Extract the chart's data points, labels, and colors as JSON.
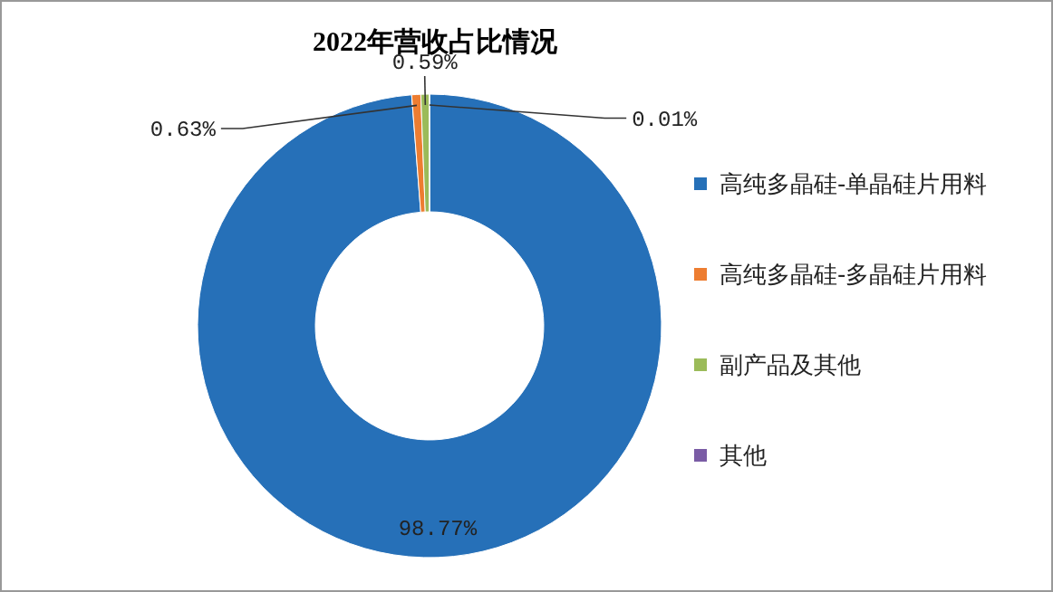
{
  "chart_data": {
    "type": "donut",
    "title": "2022年营收占比情况",
    "categories": [
      "高纯多晶硅-单晶硅片用料",
      "高纯多晶硅-多晶硅片用料",
      "副产品及其他",
      "其他"
    ],
    "values": [
      98.77,
      0.63,
      0.59,
      0.01
    ],
    "value_labels": [
      "98.77%",
      "0.63%",
      "0.59%",
      "0.01%"
    ],
    "colors": [
      "#2670b8",
      "#ed7d31",
      "#9bbb59",
      "#7a5ca5"
    ],
    "legend": "right"
  }
}
